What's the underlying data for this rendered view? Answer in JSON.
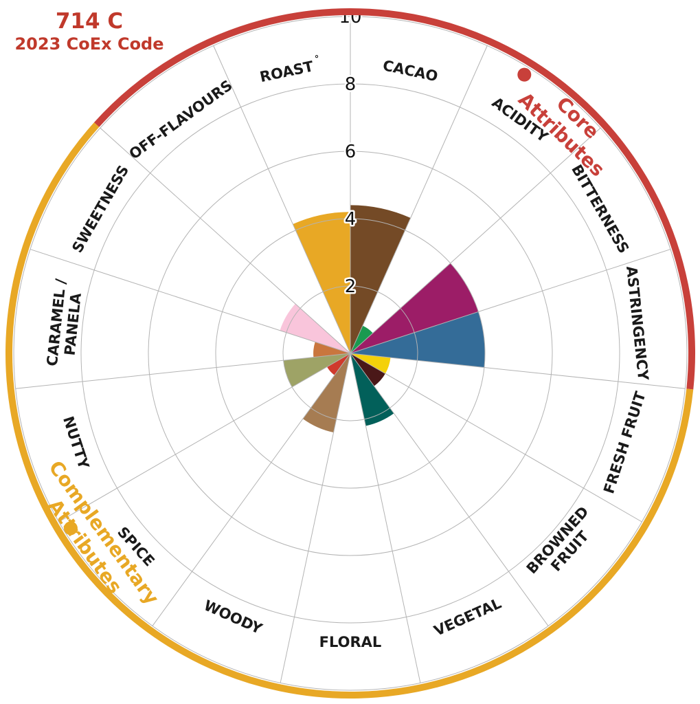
{
  "header": {
    "code": "714 C",
    "subtitle": "2023 CoEx Code"
  },
  "groups": {
    "core": {
      "label_line1": "Core",
      "label_line2": "Attributes",
      "color": "#c8403a"
    },
    "complementary": {
      "label_line1": "Complementary",
      "label_line2": "Attributes",
      "color": "#e8a825"
    },
    "off_flavours_color": "#dddddd"
  },
  "chart_data": {
    "type": "polar-bar",
    "r_max": 10,
    "r_ticks": [
      2,
      4,
      6,
      8,
      10
    ],
    "grid": true,
    "categories": [
      {
        "name": "CACAO",
        "value": 4.4,
        "color": "#744a26"
      },
      {
        "name": "ACIDITY",
        "value": 0.9,
        "color": "#1a9a50"
      },
      {
        "name": "BITTERNESS",
        "value": 4.0,
        "color": "#9c1d67"
      },
      {
        "name": "ASTRINGENCY",
        "value": 4.0,
        "color": "#346c98"
      },
      {
        "name": "FRESH FRUIT",
        "value": 1.2,
        "color": "#f4d10a"
      },
      {
        "name": "BROWNED FRUIT",
        "value": 1.2,
        "color": "#4a1818"
      },
      {
        "name": "VEGETAL",
        "value": 2.2,
        "color": "#02605a"
      },
      {
        "name": "FLORAL",
        "value": 0.0,
        "color": "#cccccc"
      },
      {
        "name": "WOODY",
        "value": 2.4,
        "color": "#a67c52"
      },
      {
        "name": "SPICE",
        "value": 0.8,
        "color": "#d03a2c"
      },
      {
        "name": "NUTTY",
        "value": 2.0,
        "color": "#9ea366"
      },
      {
        "name": "CARAMEL / PANELA",
        "value": 1.1,
        "color": "#c9763e"
      },
      {
        "name": "SWEETNESS",
        "value": 2.2,
        "color": "#f9c5db"
      },
      {
        "name": "OFF-FLAVOURS",
        "value": 0.0,
        "color": "#cccccc"
      },
      {
        "name": "ROAST",
        "value": 4.2,
        "color": "#e8a825"
      }
    ],
    "roast_mark": "°",
    "category_label_lines": {
      "CARAMEL / PANELA": [
        "CARAMEL /",
        "PANELA"
      ],
      "BROWNED FRUIT": [
        "BROWNED",
        "FRUIT"
      ]
    }
  }
}
